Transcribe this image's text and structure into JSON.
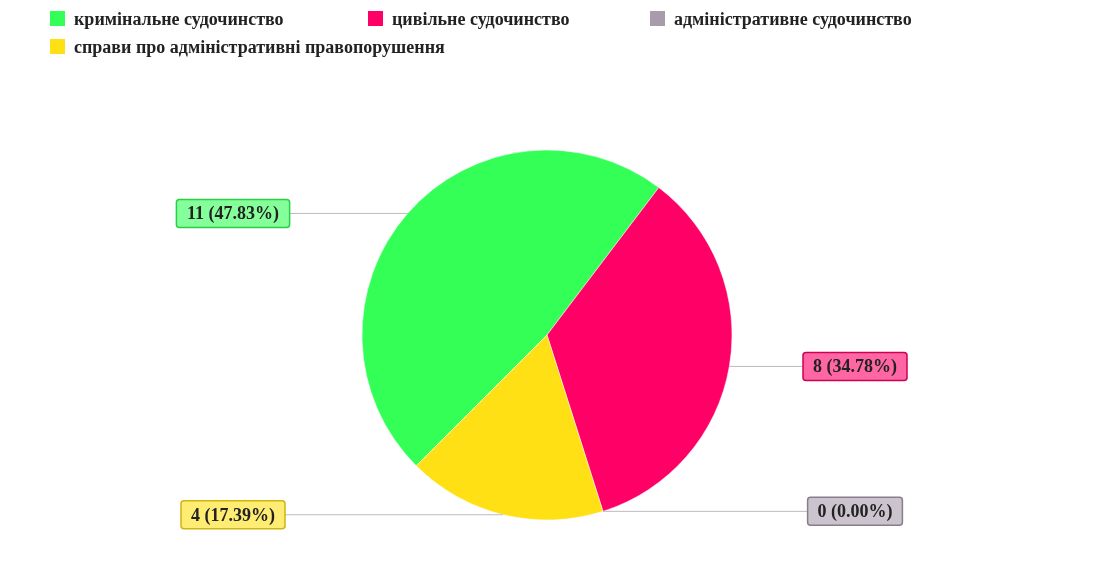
{
  "chart_data": {
    "type": "pie",
    "categories": [
      "кримінальне судочинство",
      "цивільне судочинство",
      "адміністративне судочинство",
      "справи про адміністративні правопорушення"
    ],
    "values": [
      11,
      8,
      0,
      4
    ],
    "colors": [
      "#33ff57",
      "#ff0066",
      "#a89bab",
      "#ffe014"
    ],
    "value_labels": [
      "11 (47.83%)",
      "8 (34.78%)",
      "0 (0.00%)",
      "4 (17.39%)"
    ],
    "legend": "top"
  }
}
